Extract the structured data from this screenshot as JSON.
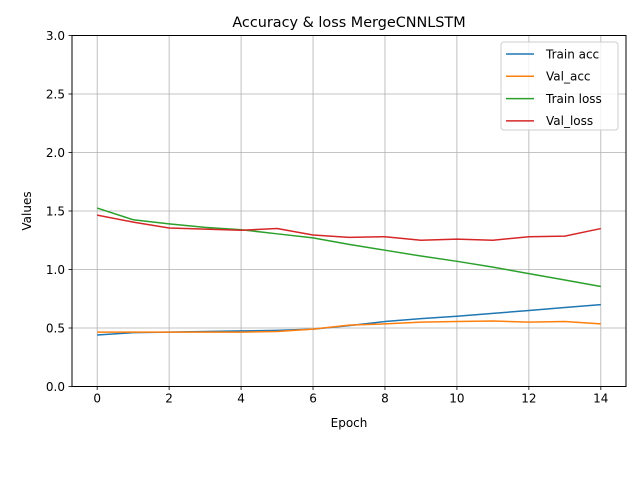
{
  "chart_data": {
    "type": "line",
    "title": "Accuracy & loss MergeCNNLSTM",
    "xlabel": "Epoch",
    "ylabel": "Values",
    "xlim": [
      -0.7,
      14.7
    ],
    "ylim": [
      0,
      3
    ],
    "xticks": [
      0,
      2,
      4,
      6,
      8,
      10,
      12,
      14
    ],
    "yticks": [
      0.0,
      0.5,
      1.0,
      1.5,
      2.0,
      2.5,
      3.0
    ],
    "xtick_labels": [
      "0",
      "2",
      "4",
      "6",
      "8",
      "10",
      "12",
      "14"
    ],
    "ytick_labels": [
      "0.0",
      "0.5",
      "1.0",
      "1.5",
      "2.0",
      "2.5",
      "3.0"
    ],
    "grid": true,
    "legend_position": "top-right",
    "x": [
      0,
      1,
      2,
      3,
      4,
      5,
      6,
      7,
      8,
      9,
      10,
      11,
      12,
      13,
      14
    ],
    "series": [
      {
        "name": "Train acc",
        "color": "#1f77b4",
        "values": [
          0.44,
          0.46,
          0.465,
          0.47,
          0.475,
          0.48,
          0.49,
          0.52,
          0.555,
          0.58,
          0.6,
          0.625,
          0.65,
          0.675,
          0.7
        ]
      },
      {
        "name": "Val_acc",
        "color": "#ff7f0e",
        "values": [
          0.465,
          0.465,
          0.465,
          0.465,
          0.465,
          0.47,
          0.49,
          0.525,
          0.535,
          0.55,
          0.555,
          0.56,
          0.55,
          0.555,
          0.535
        ]
      },
      {
        "name": "Train loss",
        "color": "#2ca02c",
        "values": [
          1.525,
          1.425,
          1.39,
          1.36,
          1.34,
          1.305,
          1.27,
          1.215,
          1.165,
          1.115,
          1.07,
          1.02,
          0.965,
          0.91,
          0.855
        ]
      },
      {
        "name": "Val_loss",
        "color": "#d62728",
        "values": [
          1.465,
          1.405,
          1.355,
          1.345,
          1.335,
          1.35,
          1.295,
          1.275,
          1.28,
          1.25,
          1.26,
          1.25,
          1.28,
          1.285,
          1.35
        ]
      }
    ]
  }
}
